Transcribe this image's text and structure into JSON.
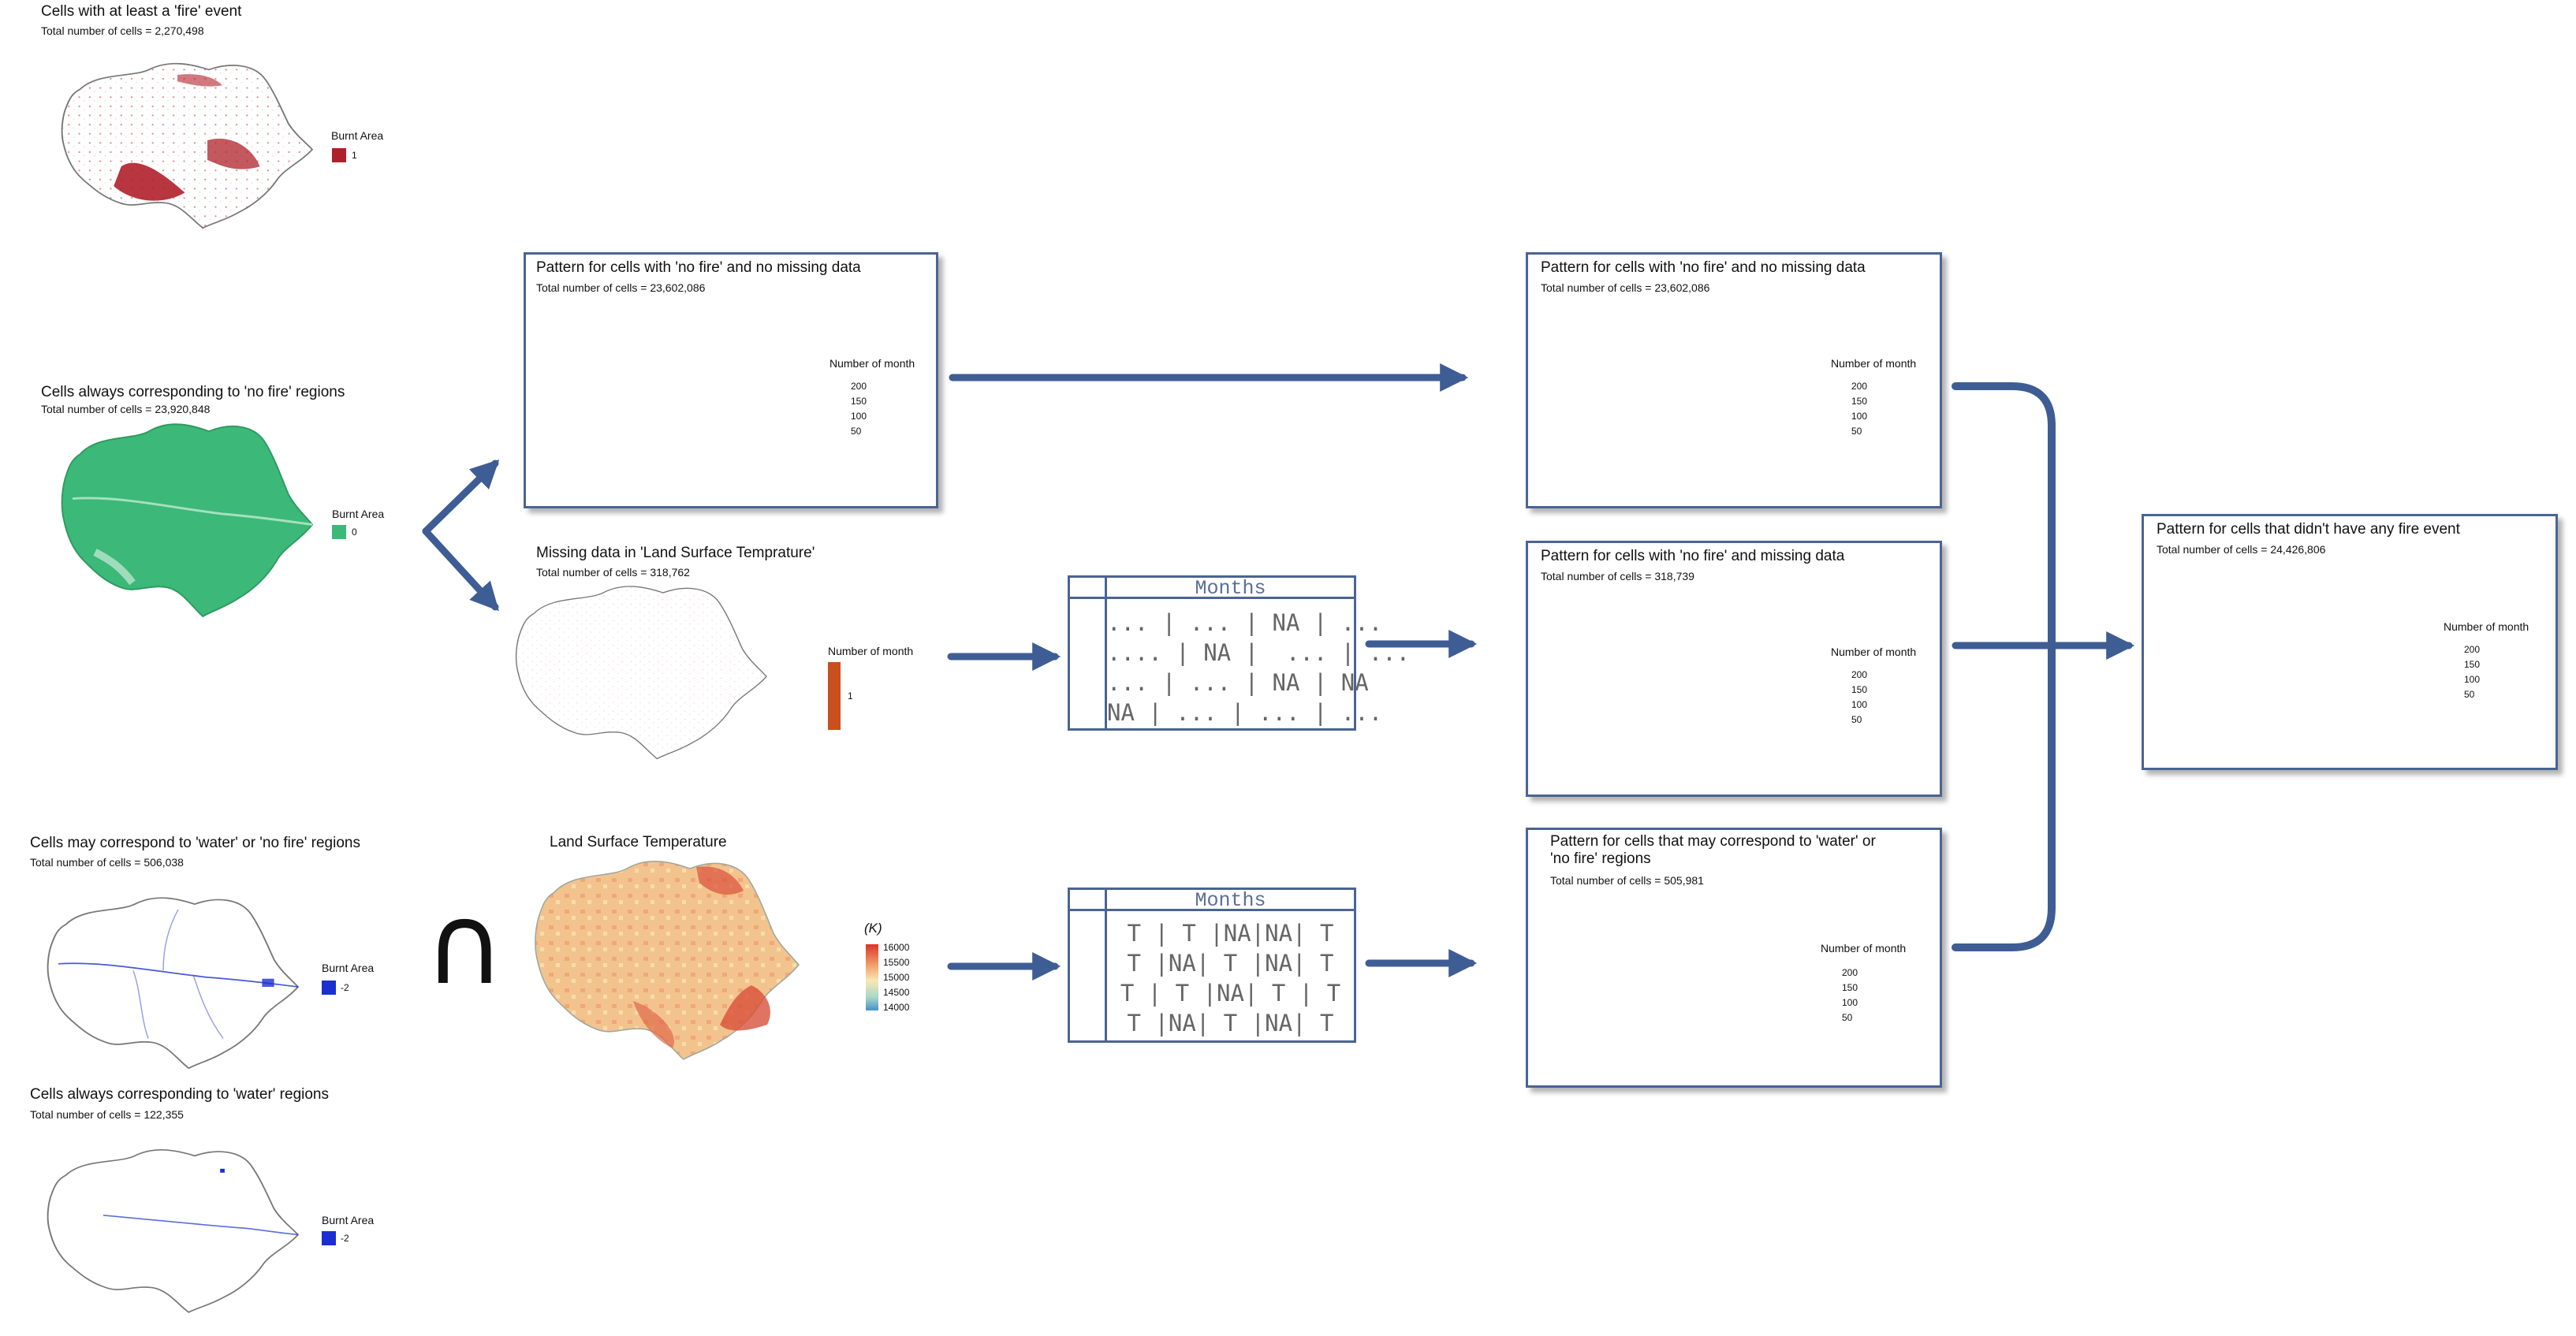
{
  "colors": {
    "box_border": "#4a6493",
    "arrow": "#3e5d94",
    "fire": "#b0202a",
    "no_fire": "#3cb879",
    "water": "#1a2fd0",
    "missing": "#c9501c"
  },
  "left_panels": {
    "fire": {
      "title": "Cells with at least a 'fire' event",
      "subtitle": "Total number of cells = 2,270,498",
      "legend_title": "Burnt Area",
      "legend_value": "1"
    },
    "no_fire": {
      "title": "Cells always corresponding to 'no fire' regions",
      "subtitle": "Total number of cells = 23,920,848",
      "legend_title": "Burnt Area",
      "legend_value": "0"
    },
    "water_or_no_fire": {
      "title": "Cells may correspond to  'water' or 'no fire' regions",
      "subtitle": "Total number of cells = 506,038",
      "legend_title": "Burnt Area",
      "legend_value": "-2"
    },
    "water": {
      "title": "Cells always corresponding to 'water' regions",
      "subtitle": "Total number of cells = 122,355",
      "legend_title": "Burnt Area",
      "legend_value": "-2"
    }
  },
  "intersection_symbol": "∩",
  "middle_panels": {
    "no_fire_no_missing": {
      "title": "Pattern for cells with 'no fire' and no missing data",
      "subtitle": "Total number of cells = 23,602,086",
      "legend_title": "Number of month",
      "ticks": [
        "200",
        "150",
        "100",
        "50"
      ]
    },
    "missing_lst": {
      "title": "Missing data in 'Land Surface Temprature'",
      "subtitle": "Total number of cells = 318,762",
      "legend_title": "Number of month",
      "ticks": [
        "1"
      ]
    },
    "lst": {
      "title": "Land Surface Temperature",
      "legend_title": "(K)",
      "ticks": [
        "16000",
        "15500",
        "15000",
        "14500",
        "14000"
      ]
    }
  },
  "months_tables": {
    "top": {
      "header": "Months",
      "rows": [
        "... | ... | NA | ...",
        ".... | NA |  ... | ...",
        "... | ... | NA | NA",
        "NA | ... | ... | ..."
      ]
    },
    "bottom": {
      "header": "Months",
      "rows": [
        "T | T |NA|NA| T",
        "T |NA| T |NA| T",
        "T | T |NA| T | T",
        "T |NA| T |NA| T"
      ]
    }
  },
  "right_panels": {
    "no_fire_no_missing": {
      "title": "Pattern for cells with 'no fire' and no missing data",
      "subtitle": "Total number of cells = 23,602,086",
      "legend_title": "Number of month",
      "ticks": [
        "200",
        "150",
        "100",
        "50"
      ]
    },
    "no_fire_missing": {
      "title": "Pattern for cells with 'no fire' and missing data",
      "subtitle": "Total number of cells = 318,739",
      "legend_title": "Number of month",
      "ticks": [
        "200",
        "150",
        "100",
        "50"
      ]
    },
    "water_or_no_fire": {
      "title_line1": "Pattern for cells that may correspond to 'water' or",
      "title_line2": "'no fire' regions",
      "subtitle": "Total number of cells = 505,981",
      "legend_title": "Number of month",
      "ticks": [
        "200",
        "150",
        "100",
        "50"
      ]
    }
  },
  "final_panel": {
    "title": "Pattern for cells that didn't have any fire event",
    "subtitle": "Total number of cells = 24,426,806",
    "legend_title": "Number of month",
    "ticks": [
      "200",
      "150",
      "100",
      "50"
    ]
  }
}
